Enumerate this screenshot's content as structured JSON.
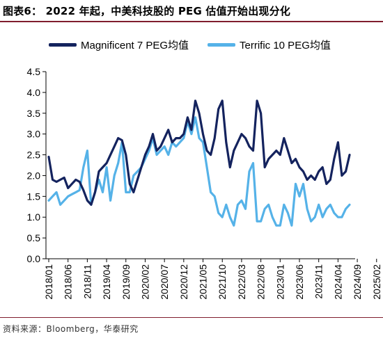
{
  "title": "图表6：  2022 年起，中美科技股的 PEG 估值开始出现分化",
  "source": "资料来源：Bloomberg，华泰研究",
  "chart_data": {
    "type": "line",
    "title": "图表6：  2022 年起，中美科技股的 PEG 估值开始出现分化",
    "xlabel": "",
    "ylabel": "",
    "ylim": [
      0.0,
      4.5
    ],
    "yticks": [
      0.0,
      0.5,
      1.0,
      1.5,
      2.0,
      2.5,
      3.0,
      3.5,
      4.0,
      4.5
    ],
    "ytick_labels": [
      "0.0",
      "0.5",
      "1.0",
      "1.5",
      "2.0",
      "2.5",
      "3.0",
      "3.5",
      "4.0",
      "4.5"
    ],
    "x_tick_labels": [
      "2018/01",
      "2018/06",
      "2018/11",
      "2019/04",
      "2019/09",
      "2020/02",
      "2020/07",
      "2020/12",
      "2021/05",
      "2021/10",
      "2022/03",
      "2022/08",
      "2023/01",
      "2023/06",
      "2023/11",
      "2024/04",
      "2024/09",
      "2025/02"
    ],
    "grid": false,
    "legend_position": "top",
    "x_step_months": 1,
    "series": [
      {
        "name": "Magnificent 7 PEG均值",
        "color": "#14235e",
        "values": [
          2.45,
          1.9,
          1.85,
          1.9,
          1.95,
          1.7,
          1.8,
          1.9,
          1.85,
          1.65,
          1.4,
          1.3,
          1.6,
          2.1,
          2.2,
          2.3,
          2.5,
          2.7,
          2.9,
          2.85,
          2.5,
          1.8,
          1.6,
          1.9,
          2.2,
          2.5,
          2.7,
          3.0,
          2.6,
          2.7,
          2.9,
          3.1,
          2.8,
          2.9,
          2.9,
          3.0,
          3.4,
          3.1,
          3.8,
          3.5,
          3.0,
          2.6,
          2.5,
          2.9,
          3.6,
          3.8,
          2.8,
          2.2,
          2.6,
          2.8,
          3.0,
          2.9,
          2.7,
          2.6,
          3.8,
          3.5,
          2.2,
          2.4,
          2.5,
          2.6,
          2.5,
          2.9,
          2.6,
          2.3,
          2.4,
          2.2,
          2.1,
          1.9,
          2.0,
          1.9,
          2.1,
          2.2,
          1.8,
          1.9,
          2.4,
          2.8,
          2.0,
          2.1,
          2.5
        ]
      },
      {
        "name": "Terrific 10 PEG均值",
        "color": "#55b2e8",
        "values": [
          1.4,
          1.5,
          1.6,
          1.3,
          1.4,
          1.5,
          1.55,
          1.6,
          1.65,
          2.2,
          2.6,
          1.3,
          1.6,
          1.9,
          1.6,
          2.2,
          1.4,
          2.0,
          2.3,
          2.8,
          1.6,
          1.6,
          2.0,
          2.1,
          2.2,
          2.4,
          2.6,
          2.9,
          2.5,
          2.6,
          2.7,
          2.5,
          2.8,
          2.7,
          2.8,
          2.9,
          3.3,
          3.0,
          3.4,
          2.9,
          2.8,
          2.2,
          1.6,
          1.5,
          1.1,
          1.0,
          1.3,
          1.0,
          0.8,
          1.3,
          1.4,
          1.2,
          2.1,
          2.3,
          0.9,
          0.9,
          1.2,
          1.3,
          1.0,
          0.8,
          0.8,
          1.3,
          1.1,
          0.8,
          1.8,
          1.5,
          1.8,
          1.2,
          0.9,
          1.0,
          1.3,
          1.0,
          1.2,
          1.3,
          1.1,
          1.0,
          1.0,
          1.2,
          1.3
        ]
      }
    ]
  }
}
